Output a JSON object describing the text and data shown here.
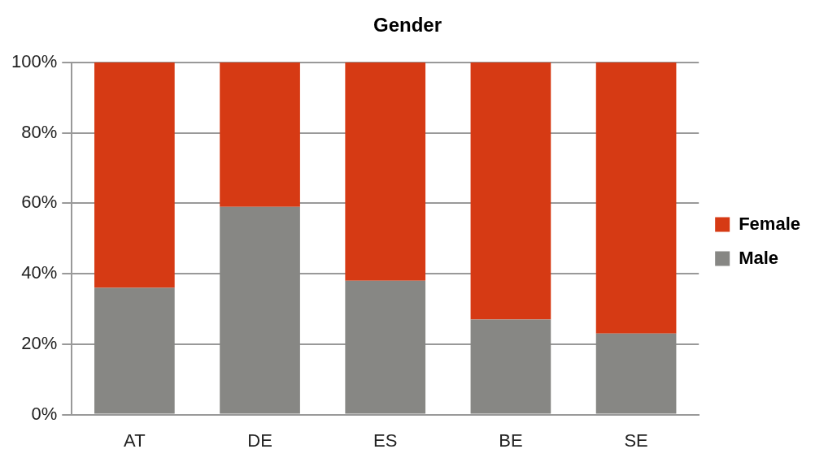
{
  "chart_data": {
    "type": "bar",
    "title": "Gender",
    "stacked": true,
    "categories": [
      "AT",
      "DE",
      "ES",
      "BE",
      "SE"
    ],
    "series": [
      {
        "name": "Male",
        "color": "#878784",
        "values": [
          36,
          59,
          38,
          27,
          23
        ]
      },
      {
        "name": "Female",
        "color": "#d63a14",
        "values": [
          64,
          41,
          62,
          73,
          77
        ]
      }
    ],
    "ylim": [
      0,
      100
    ],
    "yticks": [
      {
        "value": 0,
        "label": "0%"
      },
      {
        "value": 20,
        "label": "20%"
      },
      {
        "value": 40,
        "label": "40%"
      },
      {
        "value": 60,
        "label": "60%"
      },
      {
        "value": 80,
        "label": "80%"
      },
      {
        "value": 100,
        "label": "100%"
      }
    ],
    "grid": "y",
    "legend": "right"
  }
}
